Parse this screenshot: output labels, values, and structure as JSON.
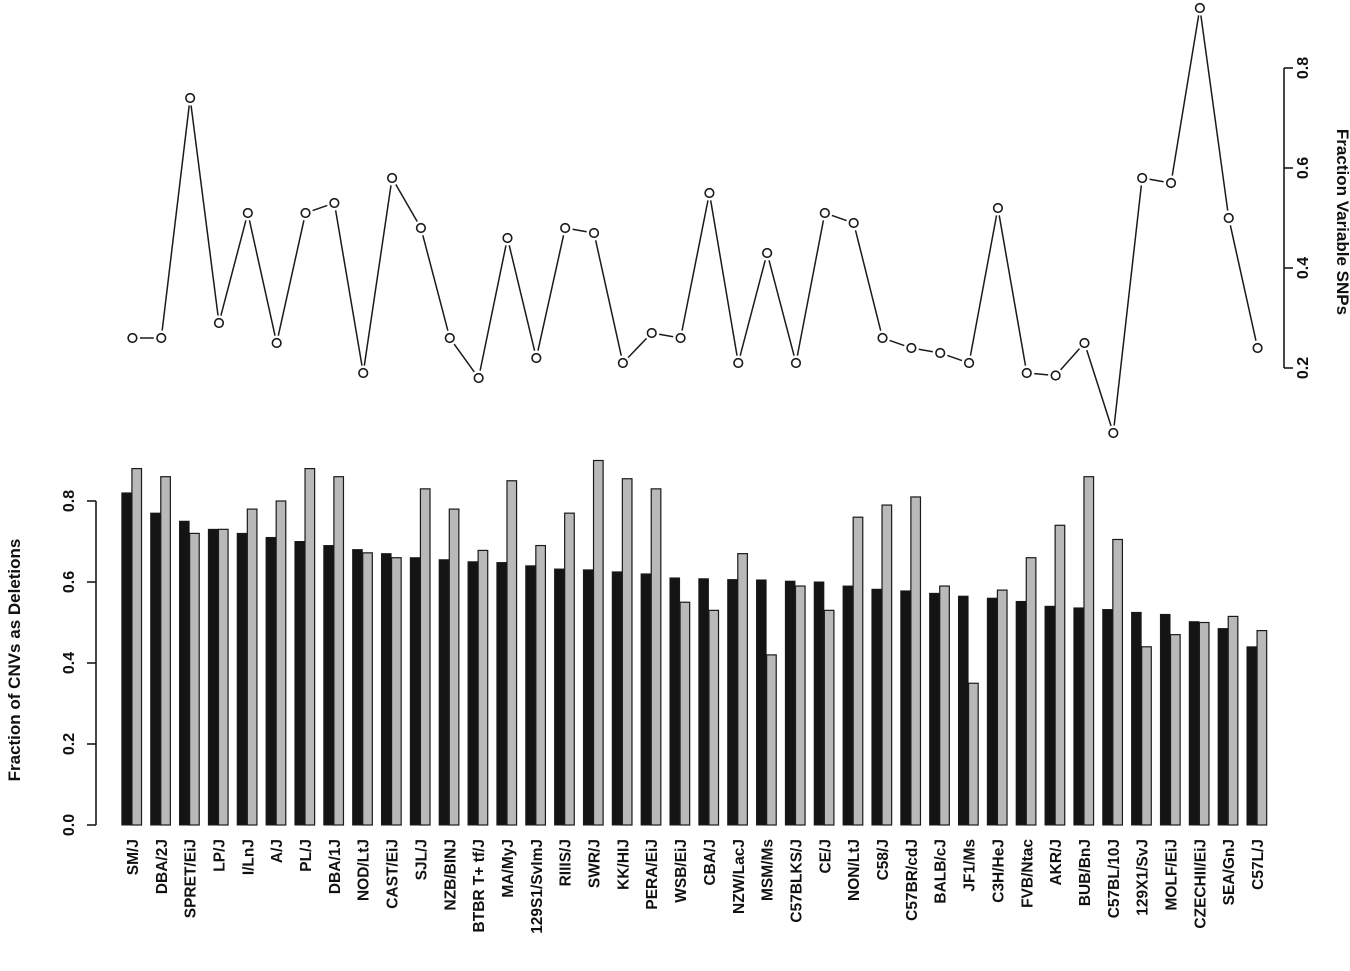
{
  "colors": {
    "ink": "#1a1a1a",
    "bar_dark": "#141414",
    "bar_light": "#b9b9b9",
    "marker_fill": "#ffffff",
    "background": "#ffffff"
  },
  "chart_data": [
    {
      "panel": "top",
      "type": "line",
      "ylabel": "Fraction Variable SNPs",
      "axis_side": "right",
      "ylim": [
        0.2,
        0.8
      ],
      "yticks": [
        0.2,
        0.4,
        0.6,
        0.8
      ],
      "marker": "open-circle",
      "grid": false,
      "legend": "none",
      "categories": [
        "SM/J",
        "DBA/2J",
        "SPRET/EiJ",
        "LP/J",
        "I/LnJ",
        "A/J",
        "PL/J",
        "DBA/1J",
        "NOD/LtJ",
        "CAST/EiJ",
        "SJL/J",
        "NZB/BINJ",
        "BTBR T+ tf/J",
        "MA/MyJ",
        "129S1/SvImJ",
        "RIIIS/J",
        "SWR/J",
        "KK/HIJ",
        "PERA/EiJ",
        "WSB/EiJ",
        "CBA/J",
        "NZW/LacJ",
        "MSM/Ms",
        "C57BLKS/J",
        "CE/J",
        "NON/LtJ",
        "C58/J",
        "C57BR/cdJ",
        "BALB/cJ",
        "JF1/Ms",
        "C3H/HeJ",
        "FVB/Ntac",
        "AKR/J",
        "BUB/BnJ",
        "C57BL/10J",
        "129X1/SvJ",
        "MOLF/EiJ",
        "CZECHII/EiJ",
        "SEA/GnJ",
        "C57L/J"
      ],
      "values": [
        0.26,
        0.26,
        0.74,
        0.29,
        0.51,
        0.25,
        0.51,
        0.53,
        0.19,
        0.58,
        0.48,
        0.26,
        0.18,
        0.46,
        0.22,
        0.48,
        0.47,
        0.21,
        0.27,
        0.26,
        0.55,
        0.21,
        0.43,
        0.21,
        0.51,
        0.49,
        0.26,
        0.24,
        0.23,
        0.21,
        0.52,
        0.19,
        0.185,
        0.25,
        0.07,
        0.58,
        0.57,
        0.92,
        0.5,
        0.24
      ]
    },
    {
      "panel": "bottom",
      "type": "bar",
      "ylabel": "Fraction of CNVs as Deletions",
      "axis_side": "left",
      "ylim": [
        0.0,
        0.9
      ],
      "yticks": [
        0.0,
        0.2,
        0.4,
        0.6,
        0.8
      ],
      "grid": false,
      "legend": "none",
      "categories": [
        "SM/J",
        "DBA/2J",
        "SPRET/EiJ",
        "LP/J",
        "I/LnJ",
        "A/J",
        "PL/J",
        "DBA/1J",
        "NOD/LtJ",
        "CAST/EiJ",
        "SJL/J",
        "NZB/BINJ",
        "BTBR T+ tf/J",
        "MA/MyJ",
        "129S1/SvImJ",
        "RIIIS/J",
        "SWR/J",
        "KK/HIJ",
        "PERA/EiJ",
        "WSB/EiJ",
        "CBA/J",
        "NZW/LacJ",
        "MSM/Ms",
        "C57BLKS/J",
        "CE/J",
        "NON/LtJ",
        "C58/J",
        "C57BR/cdJ",
        "BALB/cJ",
        "JF1/Ms",
        "C3H/HeJ",
        "FVB/Ntac",
        "AKR/J",
        "BUB/BnJ",
        "C57BL/10J",
        "129X1/SvJ",
        "MOLF/EiJ",
        "CZECHII/EiJ",
        "SEA/GnJ",
        "C57L/J"
      ],
      "series": [
        {
          "name": "dark",
          "color": "#141414",
          "values": [
            0.82,
            0.77,
            0.75,
            0.73,
            0.72,
            0.71,
            0.7,
            0.69,
            0.68,
            0.67,
            0.66,
            0.655,
            0.65,
            0.648,
            0.64,
            0.632,
            0.63,
            0.625,
            0.62,
            0.61,
            0.608,
            0.606,
            0.605,
            0.602,
            0.6,
            0.59,
            0.582,
            0.578,
            0.572,
            0.565,
            0.56,
            0.552,
            0.54,
            0.536,
            0.532,
            0.525,
            0.52,
            0.502,
            0.485,
            0.44
          ]
        },
        {
          "name": "light",
          "color": "#b9b9b9",
          "values": [
            0.88,
            0.86,
            0.72,
            0.73,
            0.78,
            0.8,
            0.88,
            0.86,
            0.672,
            0.66,
            0.83,
            0.78,
            0.678,
            0.85,
            0.69,
            0.77,
            0.9,
            0.855,
            0.83,
            0.55,
            0.53,
            0.67,
            0.42,
            0.59,
            0.53,
            0.76,
            0.79,
            0.81,
            0.59,
            0.35,
            0.58,
            0.66,
            0.74,
            0.86,
            0.705,
            0.44,
            0.47,
            0.5,
            0.515,
            0.48
          ]
        }
      ]
    }
  ]
}
